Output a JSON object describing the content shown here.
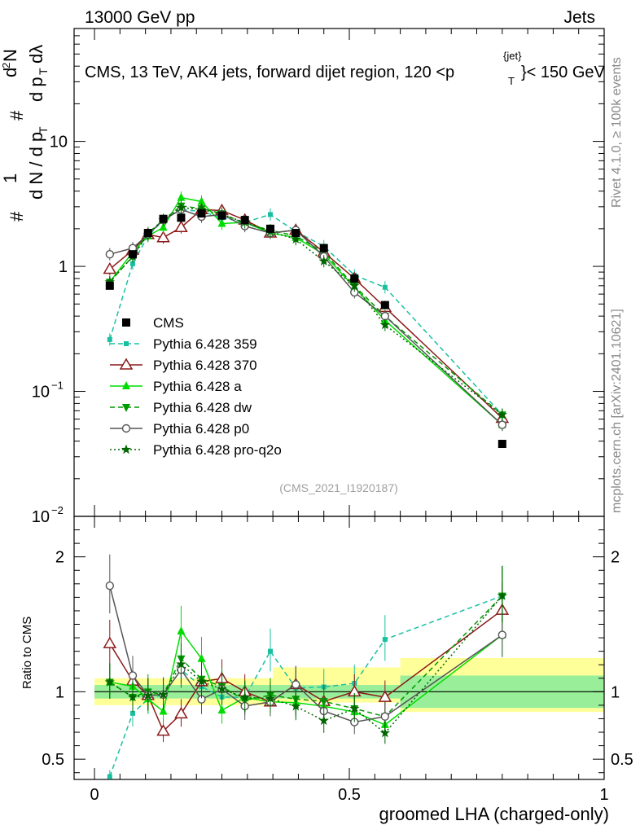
{
  "header": {
    "left": "13000 GeV pp",
    "right": "Jets"
  },
  "side_labels": {
    "rivet": "Rivet 4.1.0, ≥ 100k events",
    "mcplots": "mcplots.cern.ch [arXiv:2401.10621]"
  },
  "chart_data": {
    "type": "line",
    "title": "CMS, 13 TeV, AK4 jets, forward dijet region, 120 <p_T^{jet}< 150 GeV",
    "title_parts": {
      "main": "CMS, 13 TeV, AK4 jets, forward dijet region, 120 <p",
      "sup": "{jet}",
      "sub": "T",
      "tail": "}< 150 GeV"
    },
    "watermark": "(CMS_2021_I1920187)",
    "xlabel": "groomed LHA (charged-only)",
    "ylabel": "1/dN/dp_T  d²N/dp_T dλ",
    "ylabel_parts": {
      "hash1": "#",
      "one": "1",
      "dN_dpT": "d N / d p",
      "T1": "T",
      "hash2": "#",
      "d2N": "d",
      "two": "2",
      "N": "N",
      "dpT": "d p",
      "T2": "T",
      "dlambda": "dλ"
    },
    "ratio_ylabel": "Ratio to CMS",
    "xlim": [
      -0.04,
      1.0
    ],
    "x_ticks": [
      {
        "v": 0,
        "label": "0"
      },
      {
        "v": 0.5,
        "label": "0.5"
      },
      {
        "v": 1,
        "label": "1"
      }
    ],
    "ylim": [
      0.01,
      80
    ],
    "y_ticks": [
      {
        "v": 10,
        "label": "10"
      },
      {
        "v": 1,
        "label": "1"
      },
      {
        "v": 0.1,
        "label": "10",
        "exp": "−1"
      },
      {
        "v": 0.01,
        "label": "10",
        "exp": "−2"
      }
    ],
    "ratio_ylim": [
      0.35,
      2.3
    ],
    "ratio_ticks": [
      {
        "v": 2,
        "label": "2"
      },
      {
        "v": 1,
        "label": "1"
      },
      {
        "v": 0.5,
        "label": "0.5"
      }
    ],
    "x": [
      0.03,
      0.075,
      0.105,
      0.135,
      0.17,
      0.21,
      0.25,
      0.295,
      0.345,
      0.395,
      0.45,
      0.51,
      0.57,
      0.8
    ],
    "data": {
      "name": "CMS",
      "values": [
        0.7,
        1.25,
        1.85,
        2.4,
        2.45,
        2.65,
        2.55,
        2.35,
        2.0,
        1.85,
        1.4,
        0.8,
        0.49,
        0.038
      ],
      "errors": [
        0.05,
        0.08,
        0.1,
        0.12,
        0.12,
        0.12,
        0.12,
        0.12,
        0.1,
        0.1,
        0.08,
        0.05,
        0.03,
        0.003
      ]
    },
    "series": [
      {
        "name": "Pythia 6.428 359",
        "color": "#19c0a0",
        "dash": "6,4",
        "marker": "square-small",
        "values": [
          0.26,
          1.05,
          1.75,
          2.35,
          2.85,
          2.75,
          2.45,
          2.25,
          2.6,
          1.9,
          1.45,
          0.85,
          0.68,
          0.065
        ]
      },
      {
        "name": "Pythia 6.428 370",
        "color": "#8b1a1a",
        "dash": "",
        "marker": "triangle-open",
        "values": [
          0.95,
          1.35,
          1.8,
          1.7,
          2.05,
          2.85,
          2.8,
          2.35,
          1.85,
          1.95,
          1.3,
          0.8,
          0.47,
          0.061
        ]
      },
      {
        "name": "Pythia 6.428 a",
        "color": "#00dd00",
        "dash": "",
        "marker": "triangle-up",
        "values": [
          0.75,
          1.3,
          1.75,
          2.05,
          3.55,
          3.3,
          2.2,
          2.25,
          1.85,
          1.7,
          1.25,
          0.68,
          0.37,
          0.054
        ]
      },
      {
        "name": "Pythia 6.428 dw",
        "color": "#009900",
        "dash": "6,4",
        "marker": "triangle-down",
        "values": [
          0.75,
          1.2,
          1.85,
          2.35,
          3.05,
          2.9,
          2.65,
          2.2,
          1.95,
          1.75,
          1.3,
          0.7,
          0.4,
          0.065
        ]
      },
      {
        "name": "Pythia 6.428 p0",
        "color": "#555555",
        "dash": "",
        "marker": "circle-open",
        "values": [
          1.25,
          1.4,
          1.8,
          2.35,
          2.85,
          2.5,
          2.6,
          2.1,
          1.85,
          1.95,
          1.2,
          0.62,
          0.4,
          0.054
        ]
      },
      {
        "name": "Pythia 6.428 pro-q2o",
        "color": "#006600",
        "dash": "2,3",
        "marker": "star",
        "values": [
          0.75,
          1.2,
          1.8,
          2.35,
          2.95,
          2.85,
          2.6,
          2.25,
          1.9,
          1.65,
          1.1,
          0.7,
          0.34,
          0.065
        ]
      }
    ],
    "ratio_band": {
      "inner": [
        [
          0.0,
          0.6,
          0.95,
          1.05
        ],
        [
          0.6,
          1.0,
          0.88,
          1.12
        ]
      ],
      "outer": [
        [
          0.0,
          0.35,
          0.9,
          1.1
        ],
        [
          0.35,
          0.6,
          0.92,
          1.18
        ],
        [
          0.6,
          1.0,
          0.85,
          1.25
        ]
      ]
    },
    "legend": [
      "CMS",
      "Pythia 6.428 359",
      "Pythia 6.428 370",
      "Pythia 6.428 a",
      "Pythia 6.428 dw",
      "Pythia 6.428 p0",
      "Pythia 6.428 pro-q2o"
    ]
  }
}
